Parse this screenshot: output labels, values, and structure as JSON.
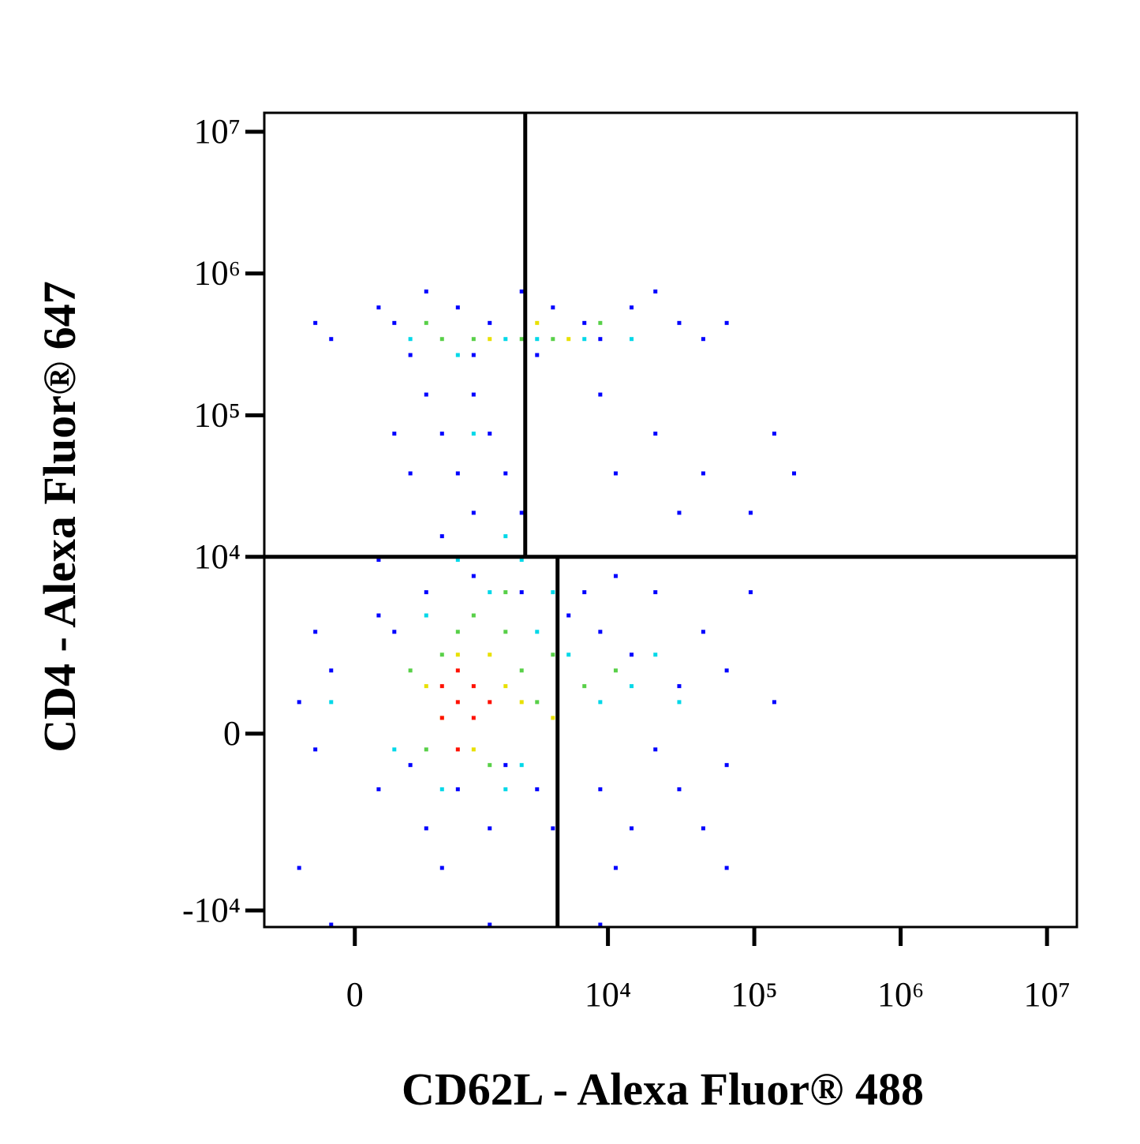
{
  "chart_data": {
    "type": "scatter",
    "x_label": "CD62L - Alexa Fluor® 488",
    "y_label": "CD4 - Alexa Fluor® 647",
    "xscale": "asinh",
    "xcofactor": 373,
    "yscale": "asinh",
    "ycofactor": 1135,
    "xlim": [
      -730,
      16000000
    ],
    "ylim": [
      -13100,
      13600000
    ],
    "xticks": [
      0,
      {
        "value": 10000,
        "label": "10⁴"
      },
      {
        "value": 100000,
        "label": "10⁵"
      },
      {
        "value": 1000000,
        "label": "10⁶"
      },
      {
        "value": 10000000,
        "label": "10⁷"
      }
    ],
    "yticks": [
      {
        "value": -10000,
        "label": "-10⁴"
      },
      0,
      {
        "value": 10000,
        "label": "10⁴"
      },
      {
        "value": 100000,
        "label": "10⁵"
      },
      {
        "value": 1000000,
        "label": "10⁶"
      },
      {
        "value": 10000000,
        "label": "10⁷"
      }
    ],
    "grid": false,
    "gates": {
      "x_upper": 2710,
      "x_lower": 4520,
      "y": 10000
    },
    "series": [
      {
        "color": "#0000ff",
        "x": [
          -142,
          143,
          247,
          513,
          906,
          1535,
          2560,
          4200,
          6900,
          14500,
          30700,
          44800,
          21100,
          -247,
          369,
          1180,
          3270,
          8860,
          64800,
          513,
          688,
          906,
          1180,
          1535,
          1980,
          2560,
          688,
          369,
          1180,
          247,
          8860,
          21100,
          44800,
          137000,
          187000,
          94400,
          30700,
          11300,
          -370,
          -247,
          -142,
          143,
          247,
          369,
          513,
          906,
          1535,
          1980,
          688,
          -370,
          143,
          513,
          1180,
          2560,
          3270,
          4200,
          -247,
          143,
          5380,
          6900,
          8860,
          11300,
          14500,
          21100,
          30700,
          44800,
          64800,
          94400,
          137000,
          30700,
          14500,
          44800,
          8860,
          21100,
          64800,
          64800,
          11300,
          -142,
          1535,
          8860
        ],
        "y": [
          345000,
          576000,
          448000,
          747000,
          576000,
          448000,
          747000,
          576000,
          448000,
          576000,
          448000,
          345000,
          747000,
          448000,
          266000,
          266000,
          266000,
          345000,
          448000,
          140000,
          74200,
          38900,
          140000,
          74200,
          38900,
          20500,
          14000,
          38900,
          20500,
          74200,
          140000,
          74200,
          38900,
          74200,
          38900,
          20500,
          20500,
          38900,
          608,
          -294,
          1380,
          -1170,
          2860,
          -604,
          -2520,
          -1170,
          -2520,
          -604,
          -4960,
          -4960,
          3790,
          5590,
          7300,
          5590,
          -1170,
          -2520,
          2860,
          9520,
          3790,
          5590,
          2860,
          7300,
          1890,
          -294,
          966,
          2860,
          1380,
          5590,
          608,
          -1170,
          -2520,
          -2520,
          -1170,
          5590,
          -604,
          -4960,
          -4960,
          -12600,
          -12600,
          -12600
        ]
      },
      {
        "color": "#00d8e8",
        "x": [
          906,
          1980,
          3270,
          6900,
          14500,
          369,
          1180,
          1980,
          906,
          1535,
          2560,
          513,
          3270,
          5380,
          8860,
          14500,
          21100,
          247,
          688,
          1980,
          2560,
          -142,
          30700,
          4200
        ],
        "y": [
          266000,
          345000,
          345000,
          345000,
          345000,
          345000,
          74200,
          14000,
          9520,
          5590,
          9520,
          3790,
          2860,
          1890,
          608,
          966,
          1890,
          -294,
          -1170,
          -1170,
          -604,
          608,
          608,
          5590
        ]
      },
      {
        "color": "#58d048",
        "x": [
          688,
          1180,
          2560,
          4200,
          8860,
          513,
          1180,
          1980,
          906,
          369,
          513,
          1535,
          2560,
          3270,
          4200,
          6900,
          11300,
          688,
          1980
        ],
        "y": [
          345000,
          345000,
          345000,
          345000,
          448000,
          448000,
          3790,
          2860,
          2860,
          1380,
          -294,
          -604,
          1380,
          608,
          1890,
          966,
          1380,
          1890,
          5590
        ]
      },
      {
        "color": "#e8e000",
        "x": [
          1535,
          3270,
          5380,
          906,
          1535,
          513,
          2560,
          1180,
          688,
          1980,
          4200
        ],
        "y": [
          345000,
          448000,
          345000,
          1890,
          1890,
          966,
          608,
          -294,
          294,
          966,
          294
        ]
      },
      {
        "color": "#ff1000",
        "x": [
          906,
          688,
          1180,
          906,
          1180,
          688,
          1535,
          906
        ],
        "y": [
          608,
          966,
          294,
          1380,
          966,
          294,
          608,
          -294
        ]
      }
    ]
  }
}
